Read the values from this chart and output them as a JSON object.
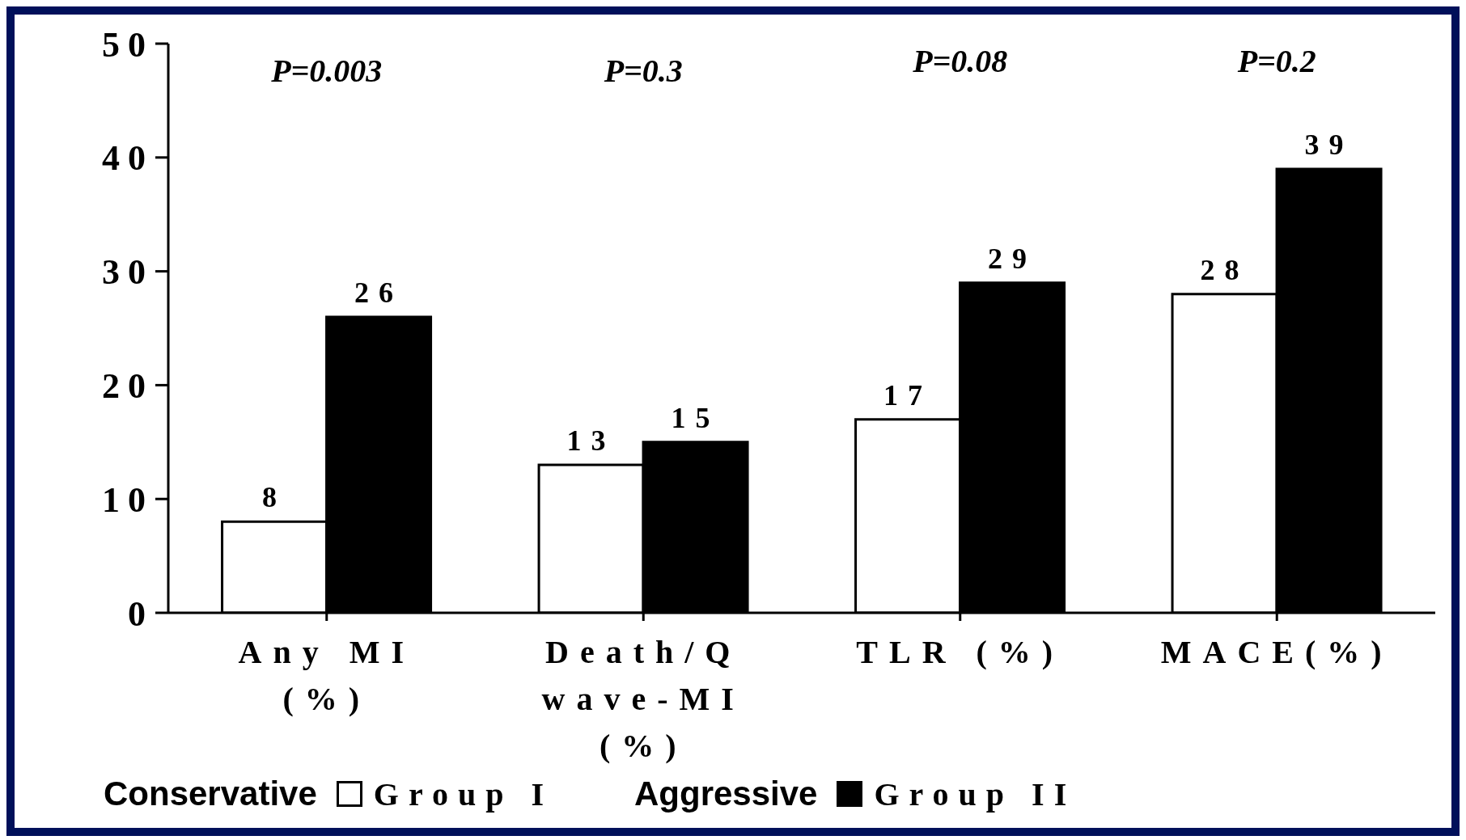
{
  "chart_data": {
    "type": "bar",
    "categories": [
      "Any MI (%)",
      "Death/Q wave-MI (%)",
      "TLR (%)",
      "MACE(%)"
    ],
    "series": [
      {
        "name": "Group I",
        "color": "#ffffff",
        "values": [
          8,
          13,
          17,
          28
        ]
      },
      {
        "name": "Group II",
        "color": "#000000",
        "values": [
          26,
          15,
          29,
          39
        ]
      }
    ],
    "ylim": [
      0,
      50
    ],
    "yticks": [
      0,
      10,
      20,
      30,
      40,
      50
    ],
    "grid": false,
    "legend": "bottom",
    "data_labels": true,
    "annotations": [
      "P=0.003",
      "P=0.3",
      "P=0.08",
      "P=0.2",
      "Conservative",
      "Aggressive"
    ]
  }
}
